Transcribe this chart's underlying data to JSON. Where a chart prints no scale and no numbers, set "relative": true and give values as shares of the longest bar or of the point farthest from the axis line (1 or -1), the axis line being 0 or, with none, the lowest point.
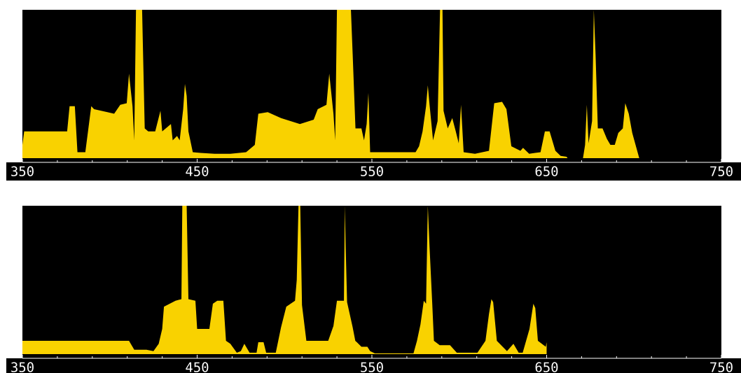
{
  "chart_data": [
    {
      "type": "area",
      "relative": true,
      "color": "#f9d200",
      "xlim": [
        350,
        750
      ],
      "xticks": [
        350,
        {
          "value": 370,
          "label": null
        },
        {
          "value": 390,
          "label": null
        },
        {
          "value": 410,
          "label": null
        },
        {
          "value": 430,
          "label": null
        },
        450,
        {
          "value": 470,
          "label": null
        },
        {
          "value": 490,
          "label": null
        },
        {
          "value": 510,
          "label": null
        },
        {
          "value": 530,
          "label": null
        },
        550,
        {
          "value": 570,
          "label": null
        },
        {
          "value": 590,
          "label": null
        },
        {
          "value": 610,
          "label": null
        },
        {
          "value": 630,
          "label": null
        },
        650,
        {
          "value": 670,
          "label": null
        },
        {
          "value": 690,
          "label": null
        },
        {
          "value": 710,
          "label": null
        },
        {
          "value": 730,
          "label": null
        },
        750
      ],
      "x": [
        350,
        351,
        375.6,
        377,
        380,
        381.5,
        386,
        389.4,
        391,
        398.6,
        402.5,
        406,
        409.7,
        411,
        413,
        414,
        415,
        418.5,
        419,
        420,
        422,
        426,
        429,
        430,
        435,
        436,
        438.5,
        440,
        442,
        443,
        444,
        445,
        447.5,
        452,
        460,
        469,
        478,
        483,
        485,
        490.4,
        498,
        508.8,
        516.7,
        519,
        524,
        525.6,
        528,
        529,
        530,
        538,
        539,
        540.6,
        544,
        545.5,
        547,
        548,
        549,
        575,
        577,
        579,
        581,
        582,
        583,
        585,
        587.6,
        589,
        590.4,
        591,
        593.4,
        596,
        598,
        599.7,
        601,
        602.5,
        609,
        617,
        620,
        624.5,
        627,
        629.8,
        635,
        636.5,
        640,
        646.5,
        649,
        651.7,
        655,
        658,
        661.4,
        662,
        670.8,
        672,
        673,
        674,
        676,
        677,
        678,
        679.3,
        682,
        684.5,
        686.5,
        689,
        691,
        693.6,
        695,
        697,
        699,
        703
      ],
      "values": [
        0.09,
        0.18,
        0.18,
        0.35,
        0.35,
        0.04,
        0.04,
        0.35,
        0.33,
        0.31,
        0.3,
        0.36,
        0.37,
        0.57,
        0.35,
        0.12,
        1,
        1,
        0.73,
        0.2,
        0.18,
        0.18,
        0.32,
        0.18,
        0.23,
        0.12,
        0.15,
        0.12,
        0.33,
        0.5,
        0.42,
        0.18,
        0.04,
        0.035,
        0.03,
        0.03,
        0.04,
        0.09,
        0.3,
        0.31,
        0.27,
        0.23,
        0.26,
        0.33,
        0.36,
        0.57,
        0.3,
        0.12,
        1,
        1,
        0.7,
        0.2,
        0.2,
        0.12,
        0.23,
        0.44,
        0.04,
        0.04,
        0.08,
        0.18,
        0.35,
        0.49,
        0.36,
        0.12,
        0.25,
        1,
        1,
        0.32,
        0.2,
        0.27,
        0.18,
        0.1,
        0.36,
        0.04,
        0.03,
        0.05,
        0.37,
        0.38,
        0.33,
        0.08,
        0.05,
        0.07,
        0.03,
        0.04,
        0.18,
        0.18,
        0.05,
        0.015,
        0.01,
        0,
        0,
        0.09,
        0.36,
        0.1,
        0.25,
        1,
        0.7,
        0.2,
        0.2,
        0.13,
        0.09,
        0.09,
        0.17,
        0.2,
        0.37,
        0.3,
        0.17,
        0
      ]
    },
    {
      "type": "area",
      "relative": true,
      "color": "#f9d200",
      "xlim": [
        350,
        750
      ],
      "xticks": [
        350,
        {
          "value": 370,
          "label": null
        },
        {
          "value": 390,
          "label": null
        },
        {
          "value": 410,
          "label": null
        },
        {
          "value": 430,
          "label": null
        },
        450,
        {
          "value": 470,
          "label": null
        },
        {
          "value": 490,
          "label": null
        },
        {
          "value": 510,
          "label": null
        },
        {
          "value": 530,
          "label": null
        },
        550,
        {
          "value": 570,
          "label": null
        },
        {
          "value": 590,
          "label": null
        },
        {
          "value": 610,
          "label": null
        },
        {
          "value": 630,
          "label": null
        },
        650,
        {
          "value": 670,
          "label": null
        },
        {
          "value": 690,
          "label": null
        },
        {
          "value": 710,
          "label": null
        },
        {
          "value": 730,
          "label": null
        },
        750
      ],
      "x": [
        350,
        411,
        414,
        421,
        425,
        428,
        430,
        431,
        437.6,
        441,
        441.5,
        444,
        445,
        449,
        450,
        455,
        457,
        459,
        461.5,
        465,
        466.5,
        469,
        472.7,
        475,
        477,
        480,
        484,
        485,
        488,
        489.5,
        495,
        498,
        501,
        506,
        507,
        508,
        509,
        510,
        512.5,
        525,
        528,
        530,
        534,
        534.5,
        535,
        535.8,
        539,
        540.5,
        544,
        547.4,
        549,
        551.7,
        573.8,
        575.8,
        577.8,
        579.7,
        581,
        582,
        583,
        584.5,
        585.5,
        588.8,
        594.7,
        598.6,
        610.4,
        615,
        617,
        618.4,
        619.4,
        621.5,
        627.3,
        631,
        634,
        636.3,
        640.2,
        642.4,
        643.5,
        645,
        649.5,
        650
      ],
      "values": [
        0.09,
        0.09,
        0.03,
        0.03,
        0.02,
        0.07,
        0.17,
        0.32,
        0.36,
        0.37,
        1,
        1,
        0.37,
        0.36,
        0.17,
        0.17,
        0.17,
        0.34,
        0.36,
        0.36,
        0.09,
        0.07,
        0.01,
        0.02,
        0.07,
        0.01,
        0.01,
        0.08,
        0.08,
        0.01,
        0.01,
        0.18,
        0.32,
        0.36,
        0.5,
        1,
        1,
        0.33,
        0.09,
        0.09,
        0.19,
        0.36,
        0.36,
        1,
        0.72,
        0.35,
        0.18,
        0.09,
        0.05,
        0.05,
        0.02,
        0.005,
        0.005,
        0.09,
        0.2,
        0.36,
        0.34,
        1,
        0.72,
        0.35,
        0.09,
        0.06,
        0.06,
        0.01,
        0.01,
        0.09,
        0.27,
        0.37,
        0.35,
        0.09,
        0.02,
        0.07,
        0.01,
        0.01,
        0.17,
        0.34,
        0.31,
        0.09,
        0.05,
        0.08
      ]
    }
  ]
}
